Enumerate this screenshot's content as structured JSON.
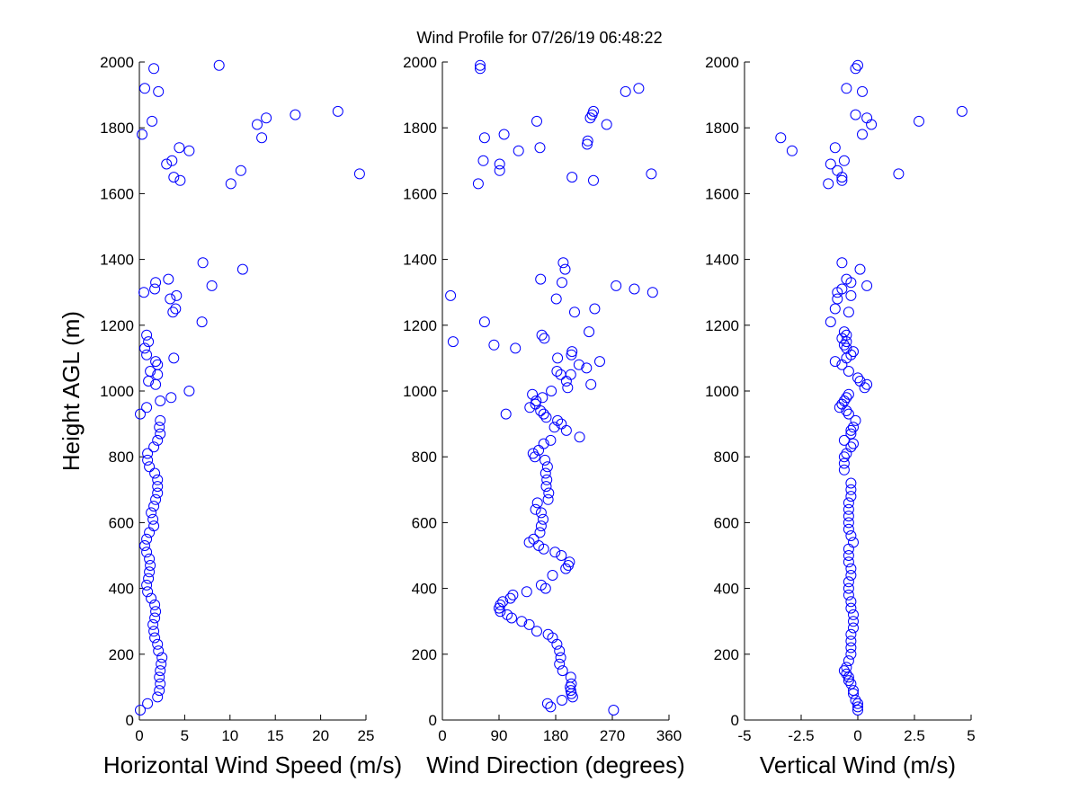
{
  "figure": {
    "title": "Wind Profile for  07/26/19 06:48:22",
    "marker_color": "#0000ff"
  },
  "chart_data": [
    {
      "type": "scatter",
      "title": "",
      "xlabel": "Horizontal Wind Speed (m/s)",
      "ylabel": "Height AGL (m)",
      "xlim": [
        0,
        25
      ],
      "ylim": [
        0,
        2000
      ],
      "xticks": [
        0,
        5,
        10,
        15,
        20,
        25
      ],
      "xtick_labels": [
        "0",
        "5",
        "10",
        "15",
        "20",
        "25"
      ],
      "yticks": [
        0,
        200,
        400,
        600,
        800,
        1000,
        1200,
        1400,
        1600,
        1800,
        2000
      ],
      "ytick_labels": [
        "0",
        "200",
        "400",
        "600",
        "800",
        "1000",
        "1200",
        "1400",
        "1600",
        "1800",
        "2000"
      ],
      "grid": false,
      "points": [
        [
          0.1,
          30
        ],
        [
          0.9,
          50
        ],
        [
          2,
          70
        ],
        [
          2.2,
          90
        ],
        [
          2.3,
          110
        ],
        [
          2.2,
          130
        ],
        [
          2.3,
          150
        ],
        [
          2.4,
          170
        ],
        [
          2.5,
          190
        ],
        [
          2.1,
          210
        ],
        [
          2,
          230
        ],
        [
          1.7,
          250
        ],
        [
          1.6,
          270
        ],
        [
          1.5,
          290
        ],
        [
          1.7,
          310
        ],
        [
          1.8,
          330
        ],
        [
          1.7,
          350
        ],
        [
          1.3,
          370
        ],
        [
          0.9,
          390
        ],
        [
          0.8,
          410
        ],
        [
          1,
          430
        ],
        [
          1.1,
          450
        ],
        [
          1.2,
          470
        ],
        [
          1.1,
          490
        ],
        [
          0.8,
          510
        ],
        [
          0.6,
          530
        ],
        [
          0.8,
          550
        ],
        [
          1.1,
          570
        ],
        [
          1.6,
          590
        ],
        [
          1.5,
          610
        ],
        [
          1.3,
          630
        ],
        [
          1.6,
          650
        ],
        [
          1.8,
          670
        ],
        [
          2,
          690
        ],
        [
          2,
          710
        ],
        [
          2,
          730
        ],
        [
          1.7,
          750
        ],
        [
          1.1,
          770
        ],
        [
          0.9,
          790
        ],
        [
          0.9,
          810
        ],
        [
          1.6,
          830
        ],
        [
          2,
          850
        ],
        [
          2.3,
          870
        ],
        [
          2.2,
          890
        ],
        [
          2.3,
          910
        ],
        [
          0.1,
          930
        ],
        [
          0.8,
          950
        ],
        [
          2.3,
          970
        ],
        [
          3.5,
          980
        ],
        [
          5.5,
          1000
        ],
        [
          1.8,
          1020
        ],
        [
          1,
          1030
        ],
        [
          2,
          1050
        ],
        [
          1.2,
          1060
        ],
        [
          2,
          1080
        ],
        [
          1.8,
          1090
        ],
        [
          3.8,
          1100
        ],
        [
          0.8,
          1110
        ],
        [
          0.6,
          1130
        ],
        [
          1,
          1150
        ],
        [
          0.8,
          1170
        ],
        [
          6.9,
          1210
        ],
        [
          4,
          1250
        ],
        [
          3.7,
          1240
        ],
        [
          3.4,
          1280
        ],
        [
          4.1,
          1290
        ],
        [
          0.5,
          1300
        ],
        [
          1.7,
          1310
        ],
        [
          8,
          1320
        ],
        [
          1.8,
          1330
        ],
        [
          3.2,
          1340
        ],
        [
          11.4,
          1370
        ],
        [
          7,
          1390
        ],
        [
          10.1,
          1630
        ],
        [
          24.3,
          1660
        ],
        [
          4.5,
          1640
        ],
        [
          3.8,
          1650
        ],
        [
          11.2,
          1670
        ],
        [
          3,
          1690
        ],
        [
          3.6,
          1700
        ],
        [
          5.5,
          1730
        ],
        [
          4.4,
          1740
        ],
        [
          13.5,
          1770
        ],
        [
          0.3,
          1780
        ],
        [
          13,
          1810
        ],
        [
          1.4,
          1820
        ],
        [
          14,
          1830
        ],
        [
          17.2,
          1840
        ],
        [
          21.9,
          1850
        ],
        [
          2.1,
          1910
        ],
        [
          0.6,
          1920
        ],
        [
          1.6,
          1980
        ],
        [
          8.8,
          1990
        ]
      ]
    },
    {
      "type": "scatter",
      "title": "",
      "xlabel": "Wind Direction (degrees)",
      "ylabel": "",
      "xlim": [
        0,
        360
      ],
      "ylim": [
        0,
        2000
      ],
      "xticks": [
        0,
        90,
        180,
        270,
        360
      ],
      "xtick_labels": [
        "0",
        "90",
        "180",
        "270",
        "360"
      ],
      "yticks": [
        0,
        200,
        400,
        600,
        800,
        1000,
        1200,
        1400,
        1600,
        1800,
        2000
      ],
      "ytick_labels": [
        "0",
        "200",
        "400",
        "600",
        "800",
        "1000",
        "1200",
        "1400",
        "1600",
        "1800",
        "2000"
      ],
      "grid": false,
      "points": [
        [
          272,
          30
        ],
        [
          172,
          40
        ],
        [
          167,
          50
        ],
        [
          190,
          60
        ],
        [
          207,
          70
        ],
        [
          205,
          80
        ],
        [
          204,
          90
        ],
        [
          203,
          100
        ],
        [
          205,
          110
        ],
        [
          204,
          130
        ],
        [
          191,
          150
        ],
        [
          186,
          170
        ],
        [
          188,
          190
        ],
        [
          186,
          210
        ],
        [
          182,
          230
        ],
        [
          175,
          250
        ],
        [
          168,
          260
        ],
        [
          150,
          270
        ],
        [
          138,
          290
        ],
        [
          126,
          300
        ],
        [
          110,
          310
        ],
        [
          103,
          320
        ],
        [
          92,
          330
        ],
        [
          90,
          340
        ],
        [
          92,
          350
        ],
        [
          96,
          360
        ],
        [
          108,
          370
        ],
        [
          112,
          380
        ],
        [
          134,
          390
        ],
        [
          164,
          400
        ],
        [
          157,
          410
        ],
        [
          175,
          440
        ],
        [
          196,
          460
        ],
        [
          200,
          470
        ],
        [
          202,
          480
        ],
        [
          189,
          500
        ],
        [
          179,
          510
        ],
        [
          161,
          520
        ],
        [
          153,
          530
        ],
        [
          138,
          540
        ],
        [
          145,
          550
        ],
        [
          155,
          570
        ],
        [
          157,
          590
        ],
        [
          160,
          610
        ],
        [
          157,
          630
        ],
        [
          148,
          640
        ],
        [
          151,
          660
        ],
        [
          168,
          670
        ],
        [
          169,
          690
        ],
        [
          165,
          710
        ],
        [
          166,
          730
        ],
        [
          164,
          750
        ],
        [
          167,
          770
        ],
        [
          163,
          790
        ],
        [
          147,
          800
        ],
        [
          144,
          810
        ],
        [
          153,
          820
        ],
        [
          161,
          840
        ],
        [
          172,
          850
        ],
        [
          218,
          860
        ],
        [
          197,
          880
        ],
        [
          178,
          890
        ],
        [
          189,
          900
        ],
        [
          183,
          910
        ],
        [
          165,
          920
        ],
        [
          161,
          930
        ],
        [
          156,
          940
        ],
        [
          139,
          950
        ],
        [
          101,
          930
        ],
        [
          148,
          960
        ],
        [
          149,
          970
        ],
        [
          159,
          980
        ],
        [
          143,
          990
        ],
        [
          173,
          1000
        ],
        [
          199,
          1010
        ],
        [
          236,
          1020
        ],
        [
          197,
          1030
        ],
        [
          188,
          1050
        ],
        [
          204,
          1050
        ],
        [
          182,
          1060
        ],
        [
          229,
          1070
        ],
        [
          217,
          1080
        ],
        [
          250,
          1090
        ],
        [
          183,
          1100
        ],
        [
          205,
          1110
        ],
        [
          206,
          1120
        ],
        [
          116,
          1130
        ],
        [
          82,
          1140
        ],
        [
          17,
          1150
        ],
        [
          162,
          1160
        ],
        [
          158,
          1170
        ],
        [
          233,
          1180
        ],
        [
          67,
          1210
        ],
        [
          210,
          1240
        ],
        [
          242,
          1250
        ],
        [
          181,
          1280
        ],
        [
          13,
          1290
        ],
        [
          334,
          1300
        ],
        [
          305,
          1310
        ],
        [
          276,
          1320
        ],
        [
          190,
          1330
        ],
        [
          156,
          1340
        ],
        [
          195,
          1370
        ],
        [
          192,
          1390
        ],
        [
          57,
          1630
        ],
        [
          332,
          1660
        ],
        [
          240,
          1640
        ],
        [
          206,
          1650
        ],
        [
          91,
          1670
        ],
        [
          91,
          1690
        ],
        [
          65,
          1700
        ],
        [
          121,
          1730
        ],
        [
          155,
          1740
        ],
        [
          230,
          1750
        ],
        [
          231,
          1760
        ],
        [
          67,
          1770
        ],
        [
          98,
          1780
        ],
        [
          261,
          1810
        ],
        [
          150,
          1820
        ],
        [
          235,
          1830
        ],
        [
          238,
          1840
        ],
        [
          240,
          1850
        ],
        [
          291,
          1910
        ],
        [
          312,
          1920
        ],
        [
          60,
          1980
        ],
        [
          60,
          1990
        ]
      ]
    },
    {
      "type": "scatter",
      "title": "",
      "xlabel": "Vertical Wind (m/s)",
      "ylabel": "",
      "xlim": [
        -5,
        5
      ],
      "ylim": [
        0,
        2000
      ],
      "xticks": [
        -5,
        -2.5,
        0,
        2.5,
        5
      ],
      "xtick_labels": [
        "-5",
        "-2.5",
        "0",
        "2.5",
        "5"
      ],
      "yticks": [
        0,
        200,
        400,
        600,
        800,
        1000,
        1200,
        1400,
        1600,
        1800,
        2000
      ],
      "ytick_labels": [
        "0",
        "200",
        "400",
        "600",
        "800",
        "1000",
        "1200",
        "1400",
        "1600",
        "1800",
        "2000"
      ],
      "grid": false,
      "points": [
        [
          0,
          30
        ],
        [
          0,
          40
        ],
        [
          0,
          50
        ],
        [
          -0.1,
          60
        ],
        [
          -0.2,
          80
        ],
        [
          -0.2,
          90
        ],
        [
          -0.3,
          110
        ],
        [
          -0.4,
          120
        ],
        [
          -0.4,
          130
        ],
        [
          -0.5,
          140
        ],
        [
          -0.6,
          150
        ],
        [
          -0.5,
          160
        ],
        [
          -0.4,
          180
        ],
        [
          -0.3,
          200
        ],
        [
          -0.3,
          220
        ],
        [
          -0.3,
          240
        ],
        [
          -0.3,
          260
        ],
        [
          -0.2,
          280
        ],
        [
          -0.2,
          300
        ],
        [
          -0.2,
          320
        ],
        [
          -0.3,
          340
        ],
        [
          -0.3,
          360
        ],
        [
          -0.4,
          380
        ],
        [
          -0.4,
          400
        ],
        [
          -0.4,
          420
        ],
        [
          -0.3,
          440
        ],
        [
          -0.3,
          460
        ],
        [
          -0.4,
          480
        ],
        [
          -0.4,
          500
        ],
        [
          -0.4,
          520
        ],
        [
          -0.2,
          540
        ],
        [
          -0.3,
          560
        ],
        [
          -0.4,
          580
        ],
        [
          -0.4,
          600
        ],
        [
          -0.4,
          620
        ],
        [
          -0.4,
          640
        ],
        [
          -0.4,
          660
        ],
        [
          -0.3,
          680
        ],
        [
          -0.3,
          700
        ],
        [
          -0.3,
          720
        ],
        [
          -0.6,
          760
        ],
        [
          -0.6,
          780
        ],
        [
          -0.6,
          800
        ],
        [
          -0.5,
          810
        ],
        [
          -0.3,
          830
        ],
        [
          -0.2,
          840
        ],
        [
          -0.6,
          850
        ],
        [
          -0.3,
          870
        ],
        [
          -0.3,
          880
        ],
        [
          -0.2,
          890
        ],
        [
          -0.1,
          910
        ],
        [
          -0.4,
          930
        ],
        [
          -0.5,
          940
        ],
        [
          -0.8,
          950
        ],
        [
          -0.7,
          960
        ],
        [
          -0.6,
          970
        ],
        [
          -0.5,
          980
        ],
        [
          -0.4,
          990
        ],
        [
          0.3,
          1010
        ],
        [
          0.4,
          1020
        ],
        [
          0.1,
          1030
        ],
        [
          0,
          1040
        ],
        [
          -0.4,
          1060
        ],
        [
          -0.7,
          1080
        ],
        [
          -1,
          1090
        ],
        [
          -0.5,
          1100
        ],
        [
          -0.3,
          1110
        ],
        [
          -0.2,
          1120
        ],
        [
          -0.5,
          1130
        ],
        [
          -0.6,
          1140
        ],
        [
          -0.5,
          1150
        ],
        [
          -0.7,
          1160
        ],
        [
          -0.5,
          1170
        ],
        [
          -0.6,
          1180
        ],
        [
          -1.2,
          1210
        ],
        [
          -0.4,
          1240
        ],
        [
          -1,
          1250
        ],
        [
          -0.9,
          1280
        ],
        [
          -0.3,
          1290
        ],
        [
          -0.9,
          1300
        ],
        [
          -0.7,
          1310
        ],
        [
          0.4,
          1320
        ],
        [
          -0.3,
          1330
        ],
        [
          -0.5,
          1340
        ],
        [
          0.1,
          1370
        ],
        [
          -0.7,
          1390
        ],
        [
          -1.3,
          1630
        ],
        [
          -0.7,
          1640
        ],
        [
          -0.7,
          1650
        ],
        [
          1.8,
          1660
        ],
        [
          -0.9,
          1670
        ],
        [
          -1.2,
          1690
        ],
        [
          -0.6,
          1700
        ],
        [
          -2.9,
          1730
        ],
        [
          -1,
          1740
        ],
        [
          -3.4,
          1770
        ],
        [
          0.2,
          1780
        ],
        [
          0.6,
          1810
        ],
        [
          2.7,
          1820
        ],
        [
          0.4,
          1830
        ],
        [
          -0.1,
          1840
        ],
        [
          4.6,
          1850
        ],
        [
          0.2,
          1910
        ],
        [
          -0.5,
          1920
        ],
        [
          -0.1,
          1980
        ],
        [
          0,
          1990
        ]
      ]
    }
  ]
}
